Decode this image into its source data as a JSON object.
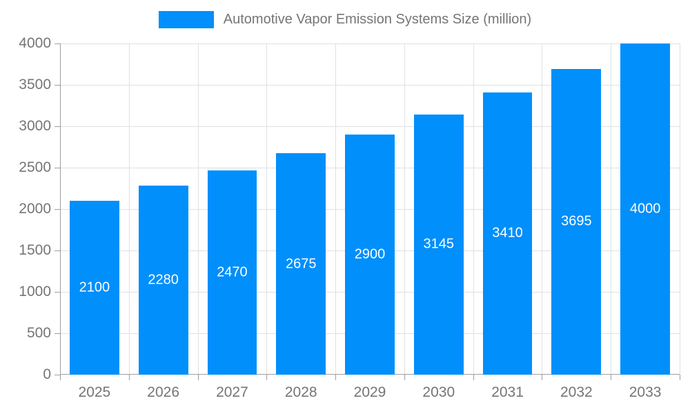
{
  "chart_data": {
    "type": "bar",
    "title": "Automotive Vapor Emission Systems Size (million)",
    "categories": [
      "2025",
      "2026",
      "2027",
      "2028",
      "2029",
      "2030",
      "2031",
      "2032",
      "2033"
    ],
    "values": [
      2100,
      2280,
      2470,
      2675,
      2900,
      3145,
      3410,
      3695,
      4000
    ],
    "xlabel": "",
    "ylabel": "",
    "ylim": [
      0,
      4000
    ],
    "yticks": [
      0,
      500,
      1000,
      1500,
      2000,
      2500,
      3000,
      3500,
      4000
    ],
    "grid": true,
    "legend_position": "top-center",
    "colors": {
      "bar": "#008FFB",
      "bar_value_text": "#ffffff",
      "grid": "#e0e0e0",
      "axis_line": "#9e9e9e",
      "axis_text": "#757575",
      "legend_text": "#757575",
      "background": "#ffffff"
    }
  }
}
